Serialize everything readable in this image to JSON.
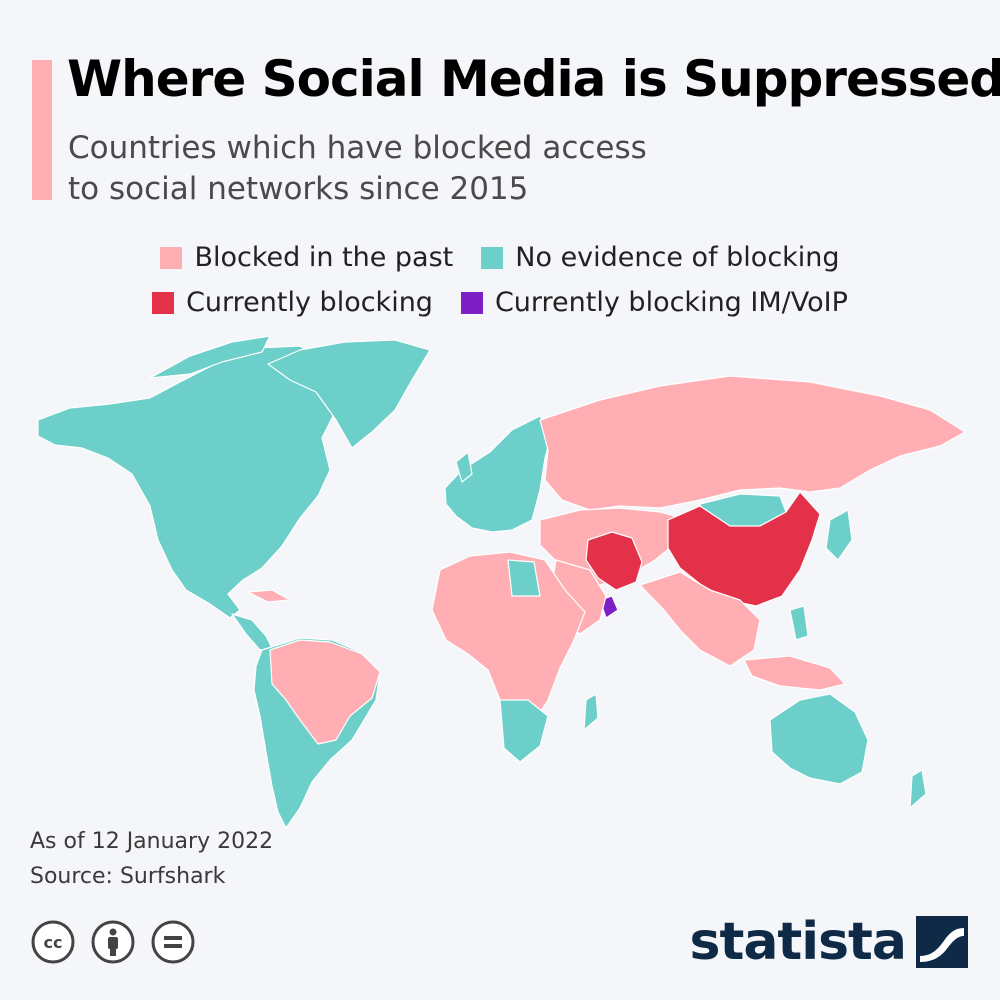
{
  "header": {
    "title": "Where Social Media is Suppressed",
    "subtitle_line1": "Countries which have blocked access",
    "subtitle_line2": "to social networks since 2015"
  },
  "legend": {
    "items": [
      {
        "label": "Blocked in the past",
        "color": "#ffaeb4"
      },
      {
        "label": "No evidence of blocking",
        "color": "#6ccfc9"
      },
      {
        "label": "Currently blocking",
        "color": "#e3314a"
      },
      {
        "label": "Currently blocking IM/VoIP",
        "color": "#7c1fc4"
      }
    ]
  },
  "map": {
    "currently_blocking": [
      "China",
      "Iran"
    ],
    "currently_blocking_im_voip": [
      "United Arab Emirates",
      "Oman"
    ]
  },
  "footer": {
    "date_note": "As of 12 January 2022",
    "source": "Source: Surfshark",
    "license_icons": [
      "cc-icon",
      "by-attribution-icon",
      "no-derivatives-icon"
    ],
    "brand": "statista"
  }
}
